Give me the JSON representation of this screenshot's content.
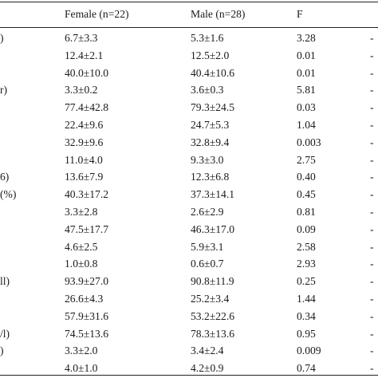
{
  "table": {
    "headers": {
      "label": "",
      "female": "Female (n=22)",
      "male": "Male (n=28)",
      "f": "F",
      "p": ""
    },
    "rows": [
      {
        "label": ")",
        "female": "6.7±3.3",
        "male": "5.3±1.6",
        "f": "3.28",
        "p": "-"
      },
      {
        "label": "",
        "female": "12.4±2.1",
        "male": "12.5±2.0",
        "f": "0.01",
        "p": "-"
      },
      {
        "label": "",
        "female": "40.0±10.0",
        "male": "40.4±10.6",
        "f": "0.01",
        "p": "-"
      },
      {
        "label": "r)",
        "female": "3.3±0.2",
        "male": "3.6±0.3",
        "f": "5.81",
        "p": "-"
      },
      {
        "label": "",
        "female": "77.4±42.8",
        "male": "79.3±24.5",
        "f": "0.03",
        "p": "-"
      },
      {
        "label": "",
        "female": "22.4±9.6",
        "male": "24.7±5.3",
        "f": "1.04",
        "p": "-"
      },
      {
        "label": "",
        "female": "32.9±9.6",
        "male": "32.8±9.4",
        "f": "0.003",
        "p": "-"
      },
      {
        "label": "",
        "female": "11.0±4.0",
        "male": "9.3±3.0",
        "f": "2.75",
        "p": "-"
      },
      {
        "label": "6)",
        "female": "13.6±7.9",
        "male": "12.3±6.8",
        "f": "0.40",
        "p": "-"
      },
      {
        "label": "(%)",
        "female": "40.3±17.2",
        "male": "37.3±14.1",
        "f": "0.45",
        "p": "-"
      },
      {
        "label": "",
        "female": "3.3±2.8",
        "male": "2.6±2.9",
        "f": "0.81",
        "p": "-"
      },
      {
        "label": "",
        "female": "47.5±17.7",
        "male": "46.3±17.0",
        "f": "0.09",
        "p": "-"
      },
      {
        "label": "",
        "female": "4.6±2.5",
        "male": "5.9±3.1",
        "f": "2.58",
        "p": "-"
      },
      {
        "label": "",
        "female": "1.0±0.8",
        "male": "0.6±0.7",
        "f": "2.93",
        "p": "-"
      },
      {
        "label": "ll)",
        "female": "93.9±27.0",
        "male": "90.8±11.9",
        "f": "0.25",
        "p": "-"
      },
      {
        "label": "",
        "female": "26.6±4.3",
        "male": "25.2±3.4",
        "f": "1.44",
        "p": "-"
      },
      {
        "label": "",
        "female": "57.9±31.6",
        "male": "53.2±22.6",
        "f": "0.34",
        "p": "-"
      },
      {
        "label": "/l)",
        "female": "74.5±13.6",
        "male": "78.3±13.6",
        "f": "0.95",
        "p": "-"
      },
      {
        "label": ")",
        "female": "3.3±2.0",
        "male": "3.4±2.4",
        "f": "0.009",
        "p": "-"
      },
      {
        "label": "",
        "female": "4.0±1.0",
        "male": "4.2±0.9",
        "f": "0.74",
        "p": "-"
      }
    ]
  }
}
